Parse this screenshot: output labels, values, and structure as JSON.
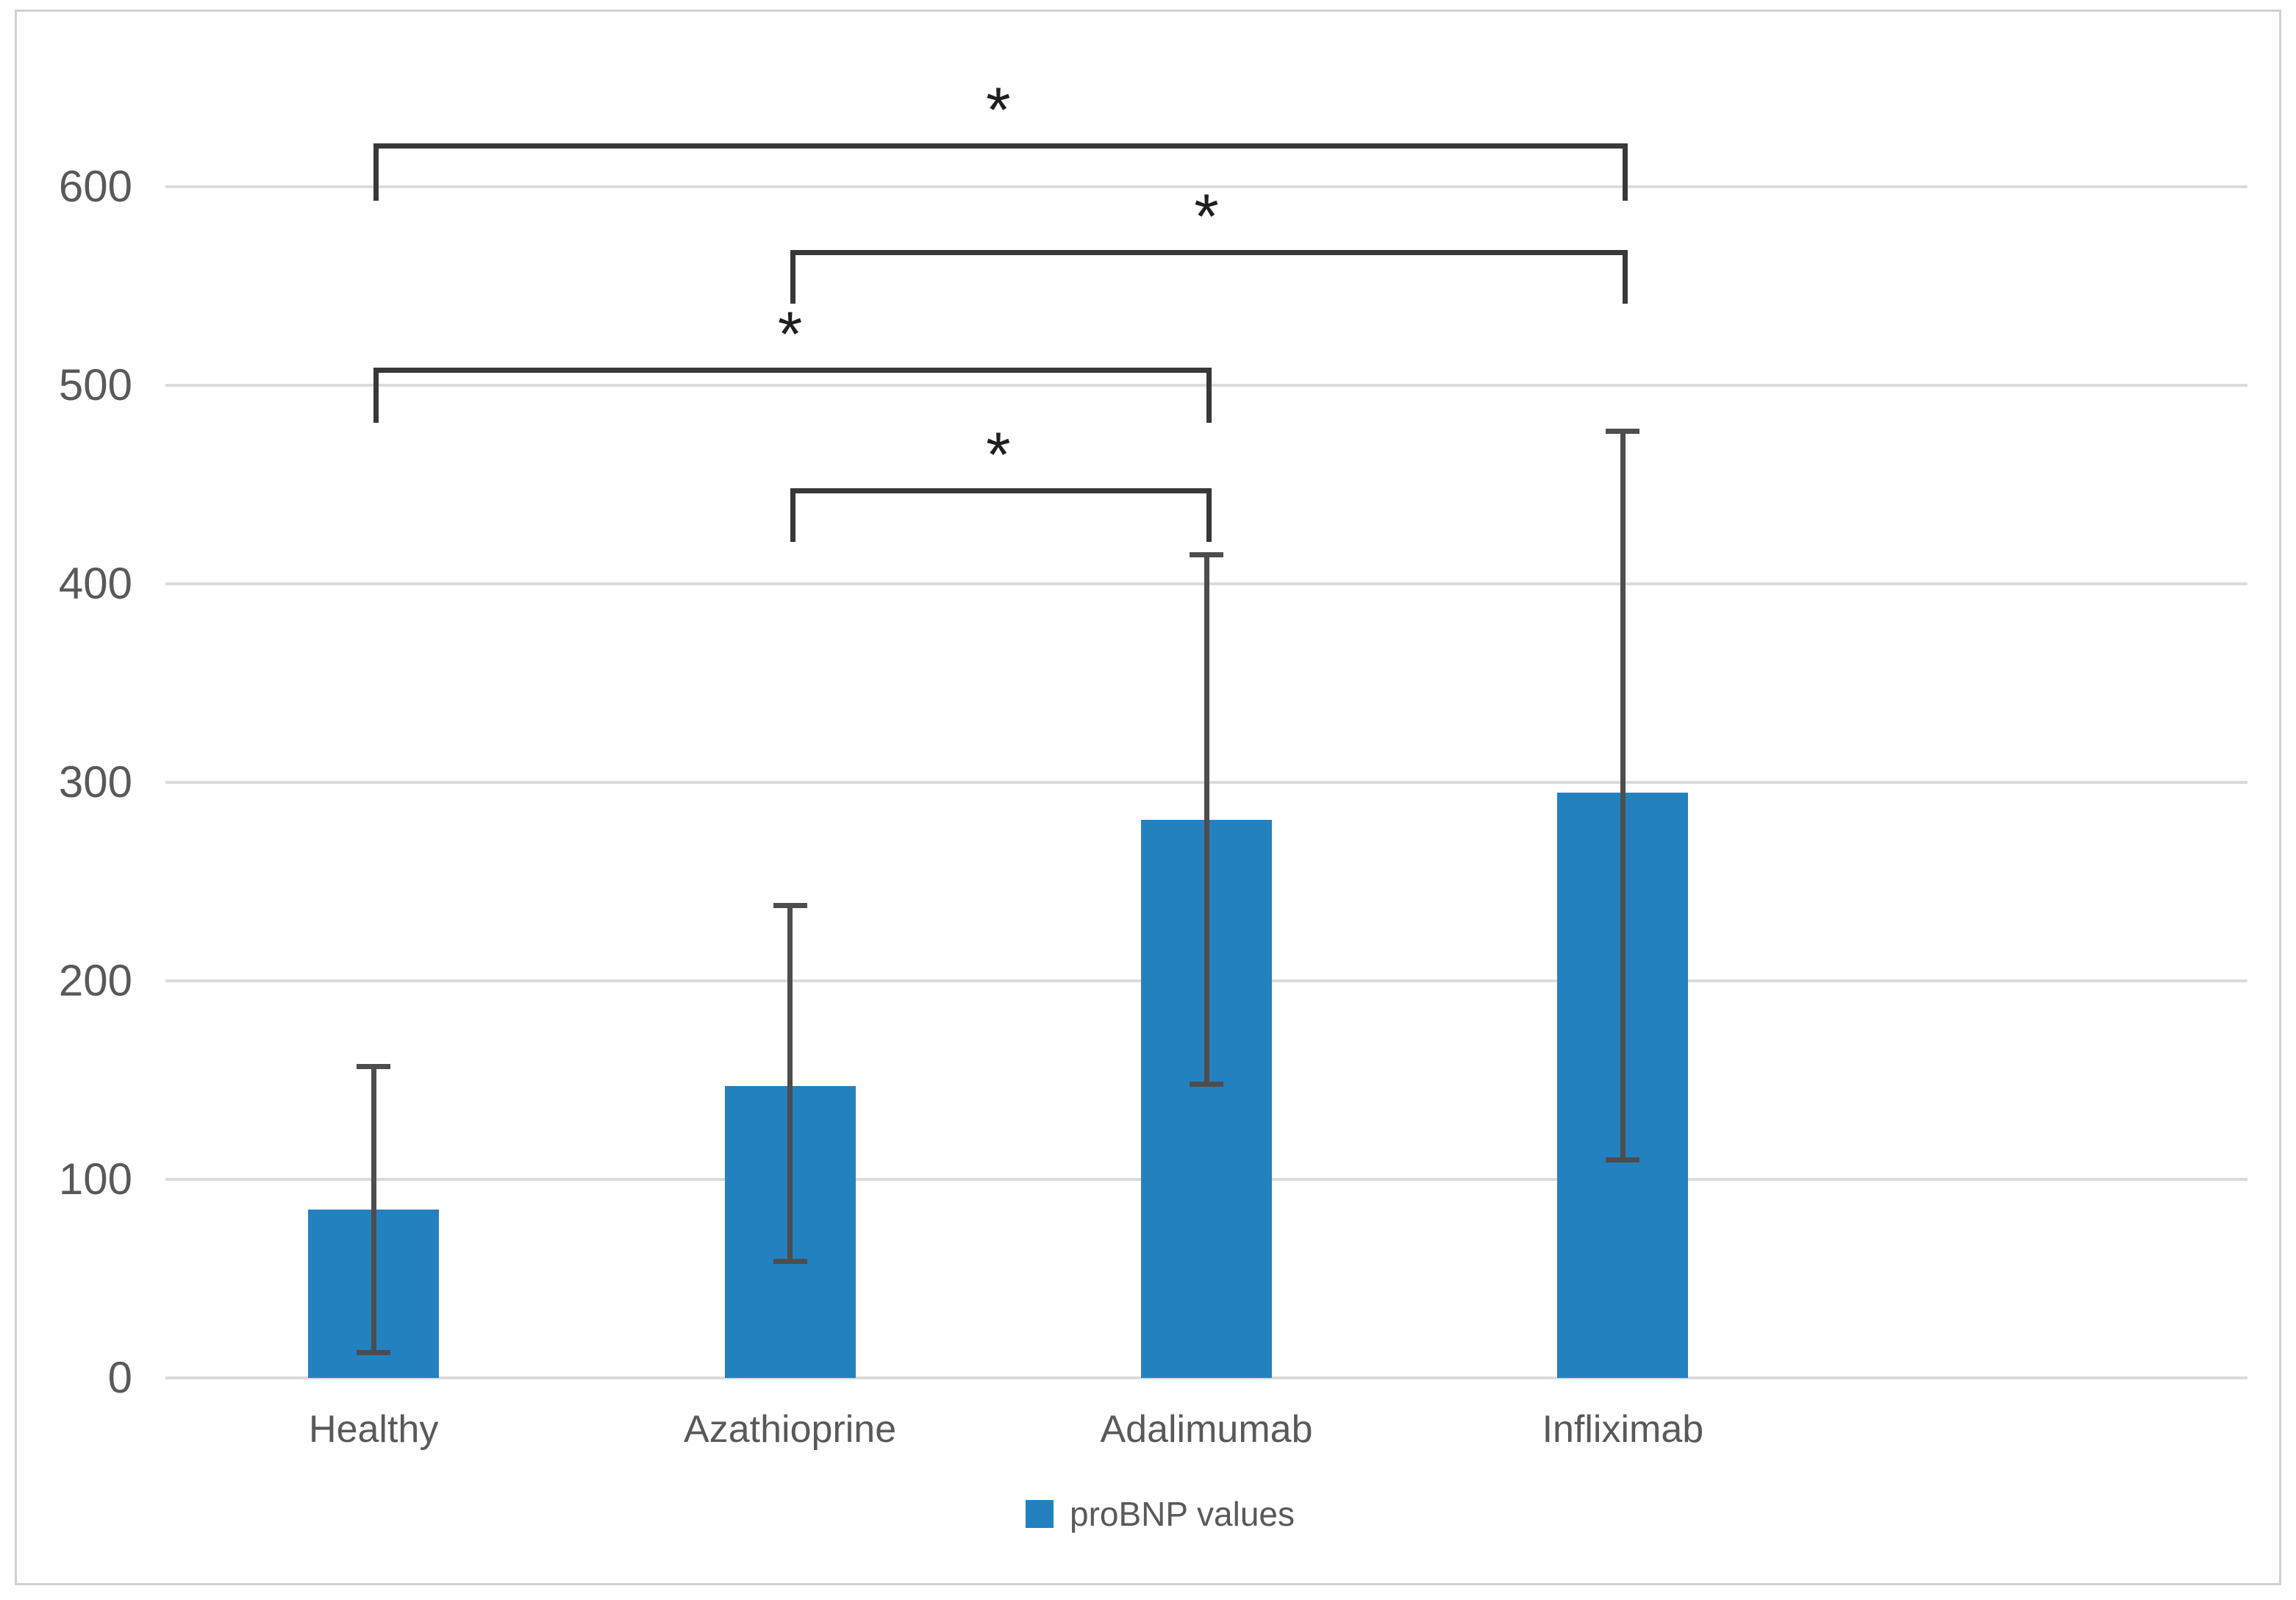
{
  "figure": {
    "background": "#ffffff",
    "border_color": "#d2d2d2"
  },
  "chart_data": {
    "type": "bar",
    "title": "",
    "categories": [
      "Healthy",
      "Azathioprine",
      "Adalimumab",
      "Infliximab"
    ],
    "values": [
      85,
      147,
      281,
      295
    ],
    "error_bars": {
      "low": [
        13,
        59,
        148,
        110
      ],
      "high": [
        157,
        238,
        415,
        477
      ]
    },
    "yticks": [
      0,
      100,
      200,
      300,
      400,
      500,
      600
    ],
    "ylim": [
      0,
      600
    ],
    "grid": true,
    "xlabel": "",
    "ylabel": "",
    "legend": {
      "label": "proBNP values",
      "position": "bottom",
      "marker": "square"
    },
    "significance_brackets": [
      {
        "from": 0,
        "to": 3,
        "label": "*",
        "level": 622,
        "legs_to": 593
      },
      {
        "from": 1,
        "to": 3,
        "label": "*",
        "level": 568,
        "legs_to": 541
      },
      {
        "from": 0,
        "to": 2,
        "label": "*",
        "level": 509,
        "legs_to": 481
      },
      {
        "from": 1,
        "to": 2,
        "label": "*",
        "level": 448,
        "legs_to": 421
      }
    ],
    "colors": {
      "bar": "#2481c0",
      "gridline": "#dbdbdb",
      "error_bar": "#4d4d4d",
      "bracket": "#383838",
      "tick_text": "#595959",
      "asterisk": "#1f1f1f"
    }
  }
}
